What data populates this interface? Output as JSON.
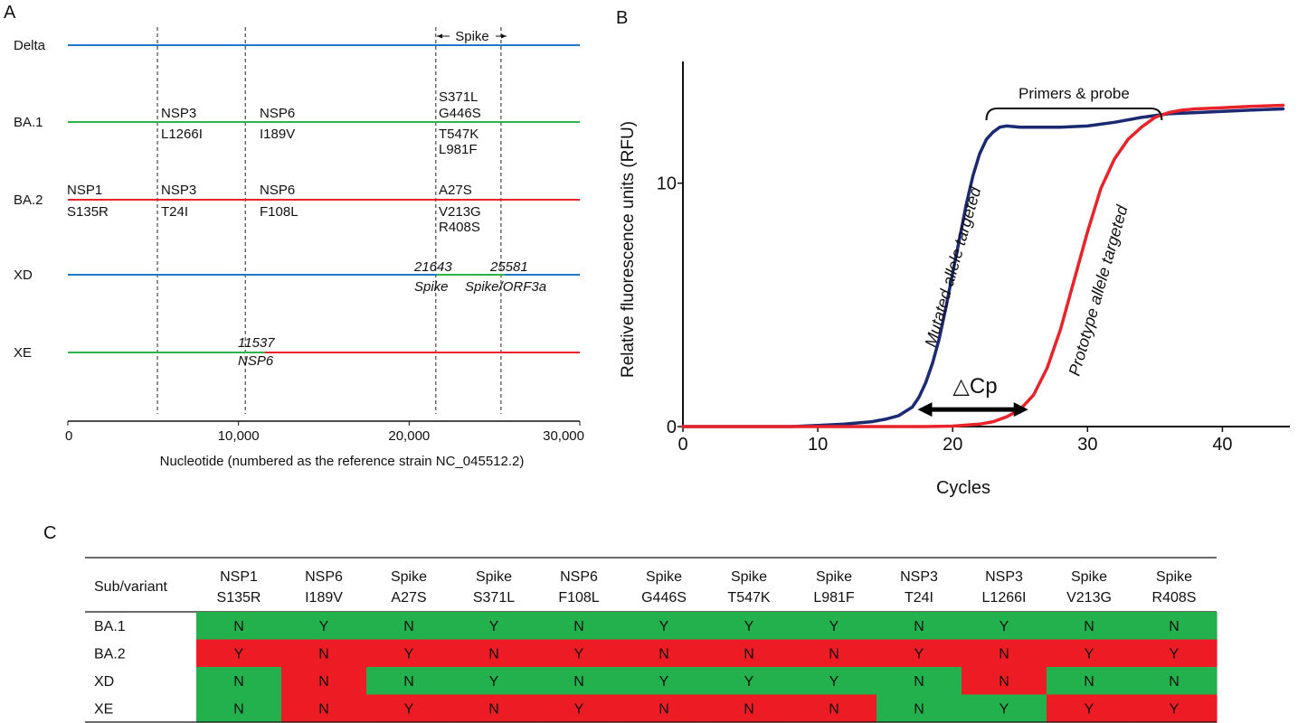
{
  "panels": {
    "a": "A",
    "b": "B",
    "c": "C"
  },
  "panel_a": {
    "x_axis_label": "Nucleotide (numbered as the reference strain NC_045512.2)",
    "x_ticks": [
      "0",
      "10,000",
      "20,000",
      "30,000"
    ],
    "x_tick_values": [
      0,
      10000,
      20000,
      30000
    ],
    "spike_label": "Spike",
    "boundaries": [
      5250,
      10400,
      21563,
      25384
    ],
    "variants": [
      {
        "name": "Delta",
        "segments": [
          {
            "from": 0,
            "to": 30000,
            "color": "#1f77c8"
          }
        ]
      },
      {
        "name": "BA.1",
        "segments": [
          {
            "from": 0,
            "to": 30000,
            "color": "#2db34a"
          }
        ]
      },
      {
        "name": "BA.2",
        "segments": [
          {
            "from": 0,
            "to": 30000,
            "color": "#e8232a"
          }
        ]
      },
      {
        "name": "XD",
        "segments": [
          {
            "from": 0,
            "to": 21643,
            "color": "#1f77c8"
          },
          {
            "from": 21643,
            "to": 25581,
            "color": "#2db34a"
          },
          {
            "from": 25581,
            "to": 30000,
            "color": "#1f77c8"
          }
        ]
      },
      {
        "name": "XE",
        "segments": [
          {
            "from": 0,
            "to": 11537,
            "color": "#2db34a"
          },
          {
            "from": 11537,
            "to": 30000,
            "color": "#e8232a"
          }
        ]
      }
    ],
    "ba1_labels": {
      "nsp3": [
        "NSP3",
        "L1266I"
      ],
      "nsp6": [
        "NSP6",
        "I189V"
      ],
      "spike": [
        "S371L",
        "G446S",
        "T547K",
        "L981F"
      ]
    },
    "ba2_labels": {
      "nsp1": [
        "NSP1",
        "S135R"
      ],
      "nsp3": [
        "NSP3",
        "T24I"
      ],
      "nsp6": [
        "NSP6",
        "F108L"
      ],
      "spike": [
        "A27S",
        "V213G",
        "R408S"
      ]
    },
    "xd_labels": {
      "bp1": "21643",
      "bp1_gene": "Spike",
      "bp2": "25581",
      "bp2_gene": "Spike/ORF3a"
    },
    "xe_labels": {
      "bp": "11537",
      "bp_gene": "NSP6"
    }
  },
  "panel_b": {
    "chart_data": {
      "type": "line",
      "xlabel": "Cycles",
      "ylabel": "Relative fluorescence units (RFU)",
      "xlim": [
        0,
        45
      ],
      "ylim": [
        0,
        15
      ],
      "x_ticks": [
        0,
        10,
        20,
        30,
        40
      ],
      "y_ticks": [
        0,
        10
      ],
      "series": [
        {
          "name": "Mutated allele targeted",
          "color": "#1b2a72",
          "x": [
            0,
            5,
            8,
            10,
            12,
            14,
            15,
            16,
            17,
            17.5,
            18,
            18.5,
            19,
            19.5,
            20,
            20.5,
            21,
            21.5,
            22,
            22.5,
            23,
            23.5,
            24,
            25,
            26,
            28,
            30,
            32,
            34,
            36,
            38,
            40,
            42,
            44.5
          ],
          "y": [
            0,
            0,
            0,
            0.05,
            0.1,
            0.2,
            0.3,
            0.45,
            0.8,
            1.2,
            1.8,
            2.6,
            3.6,
            4.9,
            6.3,
            7.7,
            9.1,
            10.3,
            11.2,
            11.8,
            12.1,
            12.3,
            12.35,
            12.3,
            12.3,
            12.3,
            12.35,
            12.5,
            12.7,
            12.85,
            12.9,
            12.95,
            13.0,
            13.05
          ]
        },
        {
          "name": "Prototype allele targeted",
          "color": "#e8232a",
          "x": [
            0,
            10,
            15,
            18,
            20,
            22,
            23,
            24,
            25,
            26,
            27,
            28,
            29,
            30,
            31,
            32,
            33,
            34,
            35,
            36,
            37,
            38,
            40,
            42,
            44.5
          ],
          "y": [
            0,
            0,
            0,
            0,
            0.02,
            0.1,
            0.2,
            0.4,
            0.7,
            1.3,
            2.4,
            4.0,
            6.0,
            8.0,
            9.8,
            11.0,
            11.8,
            12.3,
            12.7,
            12.9,
            13.0,
            13.05,
            13.1,
            13.15,
            13.2
          ]
        }
      ],
      "annotations": {
        "primers": "Primers & probe",
        "delta_cp": "△Cp",
        "delta_cp_from": 17.4,
        "delta_cp_to": 25.6,
        "delta_cp_y": 0.7,
        "primers_from": 22.5,
        "primers_to": 35.5
      }
    }
  },
  "panel_c": {
    "header_label": "Sub/variant",
    "columns": [
      [
        "NSP1",
        "S135R"
      ],
      [
        "NSP6",
        "I189V"
      ],
      [
        "Spike",
        "A27S"
      ],
      [
        "Spike",
        "S371L"
      ],
      [
        "NSP6",
        "F108L"
      ],
      [
        "Spike",
        "G446S"
      ],
      [
        "Spike",
        "T547K"
      ],
      [
        "Spike",
        "L981F"
      ],
      [
        "NSP3",
        "T24I"
      ],
      [
        "NSP3",
        "L1266I"
      ],
      [
        "Spike",
        "V213G"
      ],
      [
        "Spike",
        "R408S"
      ]
    ],
    "rows": [
      {
        "name": "BA.1",
        "values": [
          "N",
          "Y",
          "N",
          "Y",
          "N",
          "Y",
          "Y",
          "Y",
          "N",
          "Y",
          "N",
          "N"
        ],
        "colors": [
          "g",
          "g",
          "g",
          "g",
          "g",
          "g",
          "g",
          "g",
          "g",
          "g",
          "g",
          "g"
        ]
      },
      {
        "name": "BA.2",
        "values": [
          "Y",
          "N",
          "Y",
          "N",
          "Y",
          "N",
          "N",
          "N",
          "Y",
          "N",
          "Y",
          "Y"
        ],
        "colors": [
          "r",
          "r",
          "r",
          "r",
          "r",
          "r",
          "r",
          "r",
          "r",
          "r",
          "r",
          "r"
        ]
      },
      {
        "name": "XD",
        "values": [
          "N",
          "N",
          "N",
          "Y",
          "N",
          "Y",
          "Y",
          "Y",
          "N",
          "N",
          "N",
          "N"
        ],
        "colors": [
          "g",
          "r",
          "g",
          "g",
          "g",
          "g",
          "g",
          "g",
          "g",
          "r",
          "g",
          "g"
        ]
      },
      {
        "name": "XE",
        "values": [
          "N",
          "N",
          "Y",
          "N",
          "Y",
          "N",
          "N",
          "N",
          "N",
          "Y",
          "Y",
          "Y"
        ],
        "colors": [
          "g",
          "r",
          "r",
          "r",
          "r",
          "r",
          "r",
          "r",
          "g",
          "g",
          "r",
          "r"
        ]
      }
    ],
    "color_map": {
      "g": "#22b14c",
      "r": "#ed1c24"
    }
  }
}
